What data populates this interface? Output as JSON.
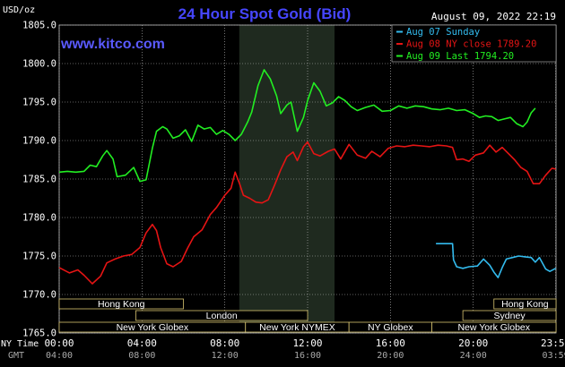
{
  "header": {
    "units": "USD/oz",
    "title": "24 Hour Spot Gold (Bid)",
    "datetime": "August 09, 2022 22:19",
    "website": "www.kitco.com"
  },
  "colors": {
    "background": "#000000",
    "plot_bg": "#000000",
    "grid": "#c0c0c0",
    "title": "#4646ff",
    "website": "#5a5aff",
    "text": "#ffffff",
    "night_shade": "#1f2a1f",
    "session_fill": "#000000",
    "session_border": "#d8c470",
    "session_text": "#ffffff"
  },
  "chart_data": {
    "type": "line",
    "title": "24 Hour Spot Gold (Bid)",
    "ylabel": "USD/oz",
    "xlim": [
      0,
      24
    ],
    "ylim": [
      1765,
      1805
    ],
    "y_ticks": [
      "1765.0",
      "1770.0",
      "1775.0",
      "1780.0",
      "1785.0",
      "1790.0",
      "1795.0",
      "1800.0",
      "1805.0"
    ],
    "x_ticks_ny": [
      "00:00",
      "04:00",
      "08:00",
      "12:00",
      "16:00",
      "20:00",
      "23:59"
    ],
    "x_ticks_gmt": [
      "04:00",
      "08:00",
      "12:00",
      "16:00",
      "20:00",
      "24:00",
      "03:59"
    ],
    "x_tick_positions": [
      0,
      4,
      8,
      12,
      16,
      20,
      23.983
    ],
    "x_row_labels": {
      "ny": "NY Time",
      "gmt": "GMT"
    },
    "grid": true,
    "legend_position": "top-right",
    "shaded_region": [
      8.7,
      13.3
    ],
    "series": [
      {
        "name": "Aug 07 Sunday",
        "legend": "Aug 07 Sunday",
        "color": "#33bbee",
        "points": [
          [
            18.2,
            1776.6
          ],
          [
            19.0,
            1776.6
          ],
          [
            19.05,
            1774.5
          ],
          [
            19.2,
            1773.6
          ],
          [
            19.5,
            1773.4
          ],
          [
            19.8,
            1773.6
          ],
          [
            20.2,
            1773.7
          ],
          [
            20.5,
            1774.6
          ],
          [
            20.8,
            1773.8
          ],
          [
            21.0,
            1772.9
          ],
          [
            21.2,
            1772.2
          ],
          [
            21.4,
            1773.5
          ],
          [
            21.6,
            1774.6
          ],
          [
            21.9,
            1774.8
          ],
          [
            22.2,
            1775.0
          ],
          [
            22.5,
            1774.9
          ],
          [
            22.8,
            1774.8
          ],
          [
            23.0,
            1774.2
          ],
          [
            23.2,
            1774.8
          ],
          [
            23.5,
            1773.3
          ],
          [
            23.7,
            1773.0
          ],
          [
            23.983,
            1773.4
          ]
        ]
      },
      {
        "name": "Aug 08 NY close",
        "legend": "Aug 08 NY close 1789.20",
        "color": "#e51414",
        "points": [
          [
            0.0,
            1773.5
          ],
          [
            0.5,
            1772.8
          ],
          [
            0.9,
            1773.2
          ],
          [
            1.2,
            1772.5
          ],
          [
            1.6,
            1771.4
          ],
          [
            2.0,
            1772.4
          ],
          [
            2.3,
            1774.1
          ],
          [
            2.7,
            1774.6
          ],
          [
            3.1,
            1775.0
          ],
          [
            3.5,
            1775.2
          ],
          [
            3.9,
            1776.1
          ],
          [
            4.2,
            1778.0
          ],
          [
            4.5,
            1779.1
          ],
          [
            4.7,
            1778.3
          ],
          [
            4.9,
            1776.1
          ],
          [
            5.2,
            1774.0
          ],
          [
            5.5,
            1773.6
          ],
          [
            5.9,
            1774.3
          ],
          [
            6.2,
            1776.0
          ],
          [
            6.5,
            1777.5
          ],
          [
            6.9,
            1778.4
          ],
          [
            7.3,
            1780.4
          ],
          [
            7.6,
            1781.3
          ],
          [
            8.0,
            1782.9
          ],
          [
            8.3,
            1783.8
          ],
          [
            8.5,
            1785.9
          ],
          [
            8.7,
            1784.5
          ],
          [
            8.9,
            1782.9
          ],
          [
            9.2,
            1782.5
          ],
          [
            9.5,
            1782.0
          ],
          [
            9.8,
            1781.9
          ],
          [
            10.1,
            1782.3
          ],
          [
            10.4,
            1784.2
          ],
          [
            10.7,
            1786.2
          ],
          [
            11.0,
            1787.9
          ],
          [
            11.3,
            1788.5
          ],
          [
            11.5,
            1787.4
          ],
          [
            11.8,
            1789.2
          ],
          [
            12.0,
            1789.8
          ],
          [
            12.3,
            1788.3
          ],
          [
            12.6,
            1788.0
          ],
          [
            13.0,
            1788.6
          ],
          [
            13.3,
            1788.9
          ],
          [
            13.6,
            1787.6
          ],
          [
            14.0,
            1789.5
          ],
          [
            14.4,
            1788.1
          ],
          [
            14.8,
            1787.7
          ],
          [
            15.1,
            1788.6
          ],
          [
            15.5,
            1787.9
          ],
          [
            15.9,
            1789.0
          ],
          [
            16.3,
            1789.3
          ],
          [
            16.7,
            1789.2
          ],
          [
            17.1,
            1789.4
          ],
          [
            17.5,
            1789.3
          ],
          [
            17.9,
            1789.2
          ],
          [
            18.3,
            1789.4
          ],
          [
            18.7,
            1789.3
          ],
          [
            19.0,
            1789.1
          ],
          [
            19.2,
            1787.5
          ],
          [
            19.5,
            1787.6
          ],
          [
            19.8,
            1787.3
          ],
          [
            20.1,
            1788.1
          ],
          [
            20.5,
            1788.4
          ],
          [
            20.8,
            1789.4
          ],
          [
            21.1,
            1788.5
          ],
          [
            21.4,
            1789.1
          ],
          [
            21.7,
            1788.3
          ],
          [
            22.0,
            1787.5
          ],
          [
            22.3,
            1786.5
          ],
          [
            22.6,
            1786.0
          ],
          [
            22.9,
            1784.4
          ],
          [
            23.2,
            1784.4
          ],
          [
            23.5,
            1785.5
          ],
          [
            23.8,
            1786.4
          ],
          [
            23.983,
            1786.3
          ]
        ]
      },
      {
        "name": "Aug 09 Last",
        "legend": "Aug 09 Last 1794.20",
        "color": "#22ee22",
        "points": [
          [
            0.0,
            1785.9
          ],
          [
            0.4,
            1786.0
          ],
          [
            0.8,
            1785.9
          ],
          [
            1.2,
            1786.0
          ],
          [
            1.5,
            1786.8
          ],
          [
            1.8,
            1786.6
          ],
          [
            2.1,
            1788.0
          ],
          [
            2.3,
            1788.7
          ],
          [
            2.6,
            1787.6
          ],
          [
            2.8,
            1785.3
          ],
          [
            3.2,
            1785.5
          ],
          [
            3.6,
            1786.5
          ],
          [
            3.9,
            1784.7
          ],
          [
            4.2,
            1784.9
          ],
          [
            4.5,
            1789.0
          ],
          [
            4.7,
            1791.2
          ],
          [
            5.0,
            1791.8
          ],
          [
            5.2,
            1791.5
          ],
          [
            5.5,
            1790.3
          ],
          [
            5.8,
            1790.6
          ],
          [
            6.1,
            1791.4
          ],
          [
            6.4,
            1789.9
          ],
          [
            6.7,
            1792.0
          ],
          [
            7.0,
            1791.5
          ],
          [
            7.3,
            1791.7
          ],
          [
            7.6,
            1790.8
          ],
          [
            7.9,
            1791.3
          ],
          [
            8.2,
            1790.8
          ],
          [
            8.5,
            1790.0
          ],
          [
            8.8,
            1790.8
          ],
          [
            9.1,
            1792.4
          ],
          [
            9.3,
            1793.7
          ],
          [
            9.6,
            1797.1
          ],
          [
            9.9,
            1799.2
          ],
          [
            10.2,
            1798.0
          ],
          [
            10.5,
            1795.8
          ],
          [
            10.7,
            1793.5
          ],
          [
            11.0,
            1794.6
          ],
          [
            11.2,
            1795.0
          ],
          [
            11.5,
            1791.2
          ],
          [
            11.8,
            1793.0
          ],
          [
            12.0,
            1795.2
          ],
          [
            12.3,
            1797.5
          ],
          [
            12.6,
            1796.4
          ],
          [
            12.9,
            1794.5
          ],
          [
            13.2,
            1794.9
          ],
          [
            13.5,
            1795.7
          ],
          [
            13.8,
            1795.2
          ],
          [
            14.1,
            1794.4
          ],
          [
            14.4,
            1793.9
          ],
          [
            14.8,
            1794.3
          ],
          [
            15.2,
            1794.6
          ],
          [
            15.6,
            1793.8
          ],
          [
            16.0,
            1793.9
          ],
          [
            16.4,
            1794.5
          ],
          [
            16.8,
            1794.2
          ],
          [
            17.2,
            1794.5
          ],
          [
            17.6,
            1794.4
          ],
          [
            18.0,
            1794.1
          ],
          [
            18.4,
            1794.0
          ],
          [
            18.8,
            1794.2
          ],
          [
            19.2,
            1793.9
          ],
          [
            19.6,
            1794.0
          ],
          [
            20.0,
            1793.5
          ],
          [
            20.3,
            1793.0
          ],
          [
            20.6,
            1793.2
          ],
          [
            20.9,
            1793.1
          ],
          [
            21.2,
            1792.6
          ],
          [
            21.5,
            1792.8
          ],
          [
            21.8,
            1793.0
          ],
          [
            22.1,
            1792.2
          ],
          [
            22.4,
            1791.8
          ],
          [
            22.6,
            1792.4
          ],
          [
            22.8,
            1793.6
          ],
          [
            23.0,
            1794.2
          ]
        ]
      }
    ]
  },
  "sessions": [
    {
      "label": "Hong Kong",
      "start": 0.0,
      "end": 6.0,
      "row": 0
    },
    {
      "label": "London",
      "start": 3.7,
      "end": 12.0,
      "row": 1
    },
    {
      "label": "New York Globex",
      "start": 0.0,
      "end": 9.0,
      "row": 2
    },
    {
      "label": "New York NYMEX",
      "start": 9.0,
      "end": 14.0,
      "row": 2
    },
    {
      "label": "NY Globex",
      "start": 14.0,
      "end": 18.0,
      "row": 2
    },
    {
      "label": "Hong Kong",
      "start": 21.0,
      "end": 24.0,
      "row": 0
    },
    {
      "label": "Sydney",
      "start": 19.5,
      "end": 24.0,
      "row": 1
    },
    {
      "label": "New York Globex",
      "start": 18.0,
      "end": 24.0,
      "row": 2
    }
  ]
}
